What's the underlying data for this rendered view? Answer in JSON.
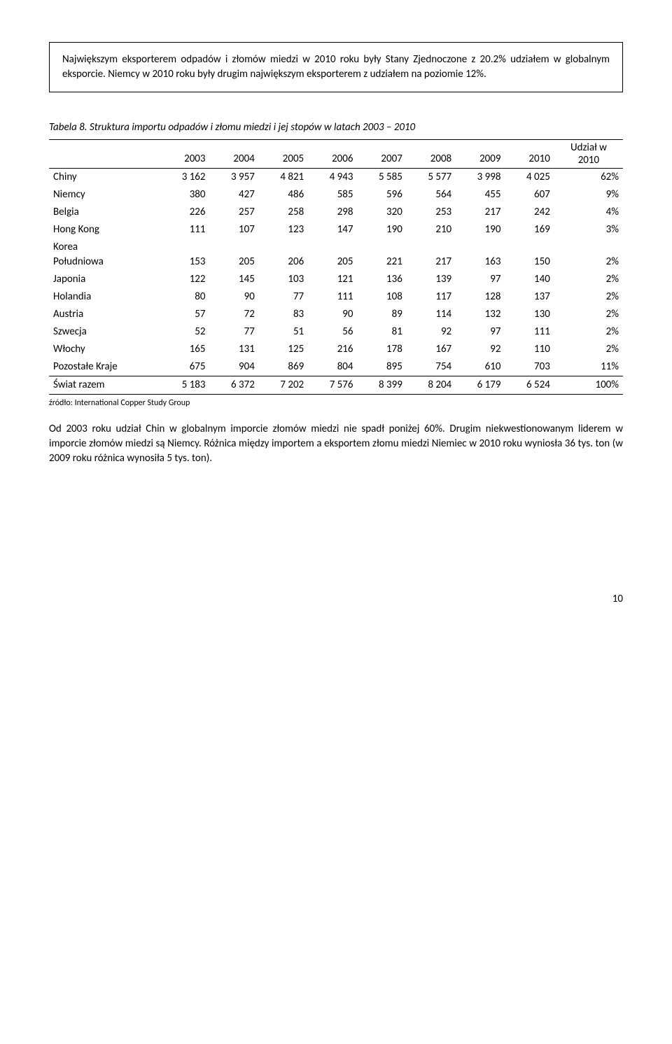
{
  "intro_box": "Największym eksporterem odpadów i złomów miedzi w 2010 roku były Stany Zjednoczone z 20.2% udziałem w globalnym eksporcie. Niemcy w 2010 roku były drugim największym eksporterem z udziałem na poziomie 12%.",
  "table_caption": "Tabela 8. Struktura importu odpadów i złomu miedzi i jej stopów w latach 2003 – 2010",
  "share_header_line1": "Udział w",
  "share_header_line2": "2010",
  "years": [
    "2003",
    "2004",
    "2005",
    "2006",
    "2007",
    "2008",
    "2009",
    "2010"
  ],
  "rows": [
    {
      "label": "Chiny",
      "vals": [
        "3 162",
        "3 957",
        "4 821",
        "4 943",
        "5 585",
        "5 577",
        "3 998",
        "4 025"
      ],
      "share": "62%"
    },
    {
      "label": "Niemcy",
      "vals": [
        "380",
        "427",
        "486",
        "585",
        "596",
        "564",
        "455",
        "607"
      ],
      "share": "9%"
    },
    {
      "label": "Belgia",
      "vals": [
        "226",
        "257",
        "258",
        "298",
        "320",
        "253",
        "217",
        "242"
      ],
      "share": "4%"
    },
    {
      "label": "Hong Kong",
      "vals": [
        "111",
        "107",
        "123",
        "147",
        "190",
        "210",
        "190",
        "169"
      ],
      "share": "3%"
    },
    {
      "label_line1": "Korea",
      "label_line2": "Południowa",
      "vals": [
        "153",
        "205",
        "206",
        "205",
        "221",
        "217",
        "163",
        "150"
      ],
      "share": "2%"
    },
    {
      "label": "Japonia",
      "vals": [
        "122",
        "145",
        "103",
        "121",
        "136",
        "139",
        "97",
        "140"
      ],
      "share": "2%"
    },
    {
      "label": "Holandia",
      "vals": [
        "80",
        "90",
        "77",
        "111",
        "108",
        "117",
        "128",
        "137"
      ],
      "share": "2%"
    },
    {
      "label": "Austria",
      "vals": [
        "57",
        "72",
        "83",
        "90",
        "89",
        "114",
        "132",
        "130"
      ],
      "share": "2%"
    },
    {
      "label": "Szwecja",
      "vals": [
        "52",
        "77",
        "51",
        "56",
        "81",
        "92",
        "97",
        "111"
      ],
      "share": "2%"
    },
    {
      "label": "Włochy",
      "vals": [
        "165",
        "131",
        "125",
        "216",
        "178",
        "167",
        "92",
        "110"
      ],
      "share": "2%"
    },
    {
      "label": "Pozostałe Kraje",
      "vals": [
        "675",
        "904",
        "869",
        "804",
        "895",
        "754",
        "610",
        "703"
      ],
      "share": "11%"
    }
  ],
  "total_row": {
    "label": "Świat razem",
    "vals": [
      "5 183",
      "6 372",
      "7 202",
      "7 576",
      "8 399",
      "8 204",
      "6 179",
      "6 524"
    ],
    "share": "100%"
  },
  "source": "źródło: International Copper Study Group",
  "body_text": "Od 2003 roku udział Chin w globalnym imporcie złomów miedzi nie spadł poniżej 60%. Drugim niekwestionowanym liderem w imporcie złomów miedzi są Niemcy. Różnica między importem a eksportem złomu miedzi Niemiec w 2010 roku wyniosła 36 tys. ton (w 2009 roku różnica wynosiła 5 tys. ton).",
  "page_number": "10"
}
